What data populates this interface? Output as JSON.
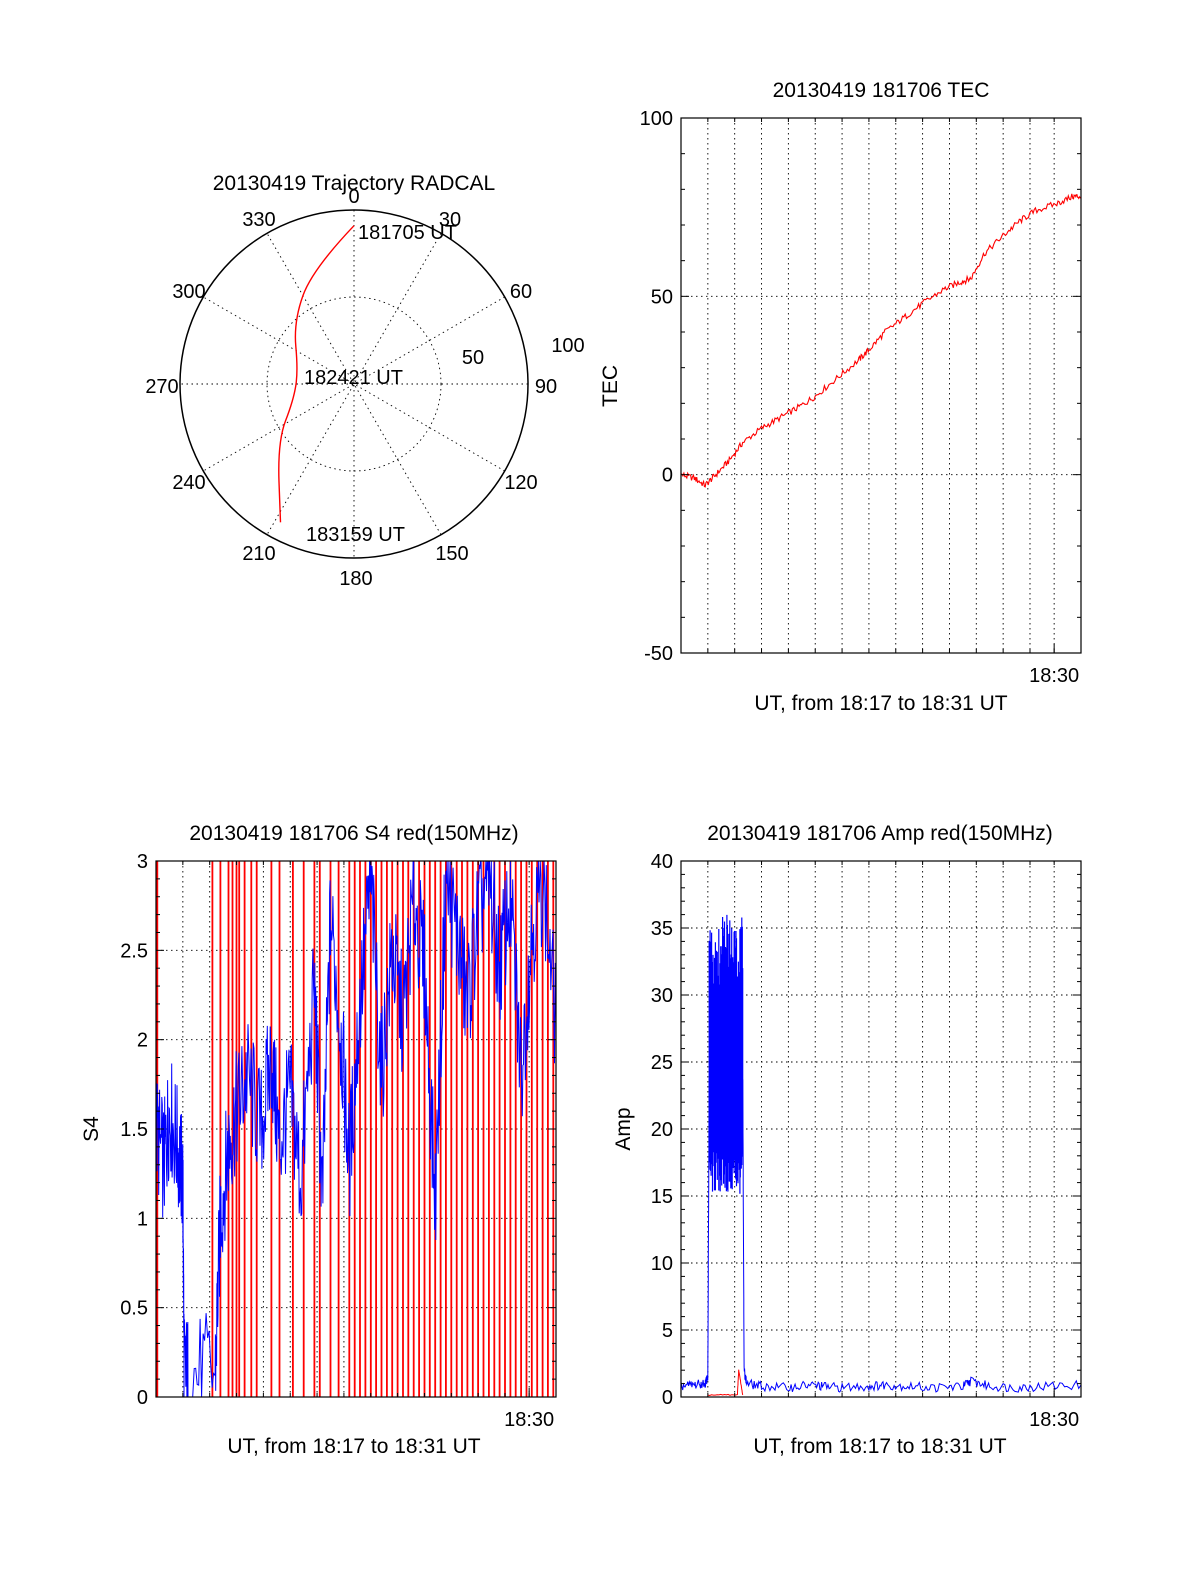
{
  "chart_data": [
    {
      "type": "polar",
      "title": "20130419 Trajectory RADCAL",
      "angle_labels": [
        "0",
        "30",
        "60",
        "90",
        "120",
        "150",
        "180",
        "210",
        "240",
        "270",
        "300",
        "330"
      ],
      "radial_labels": [
        "50",
        "100"
      ],
      "rmax": 100,
      "grid": true,
      "series": [
        {
          "color": "#ff0000",
          "points": [
            {
              "az": 0,
              "r": 91
            },
            {
              "az": 340,
              "r": 70
            },
            {
              "az": 316,
              "r": 50
            },
            {
              "az": 283,
              "r": 33
            },
            {
              "az": 255,
              "r": 36
            },
            {
              "az": 233,
              "r": 55
            },
            {
              "az": 208,
              "r": 90
            }
          ]
        }
      ],
      "annotations": [
        {
          "text": "181705 UT",
          "az": 0,
          "r": 91
        },
        {
          "text": "182421 UT",
          "az": 0,
          "r": 0
        },
        {
          "text": "183159 UT",
          "az": 208,
          "r": 90
        }
      ]
    },
    {
      "type": "line",
      "title": "20130419 181706 TEC",
      "xlabel": "UT, from 18:17 to 18:31 UT",
      "ylabel": "TEC",
      "xlim": [
        0,
        14.9
      ],
      "ylim": [
        -50,
        100
      ],
      "yticks": [
        -50,
        0,
        50,
        100
      ],
      "xtick_labels": [
        {
          "x": 13.9,
          "label": "18:30"
        }
      ],
      "xgrid": [
        1,
        2,
        3,
        4,
        5,
        6,
        7,
        8,
        9,
        10,
        11,
        12,
        13,
        13.9
      ],
      "ygrid": [
        0,
        50
      ],
      "series": [
        {
          "color": "#ff0000",
          "x": [
            0,
            0.5,
            0.9,
            1.3,
            1.8,
            2.3,
            3,
            3.7,
            4.4,
            5,
            5.8,
            6.6,
            7,
            7.6,
            8.3,
            9,
            9.8,
            10.4,
            10.8,
            11.3,
            12,
            12.6,
            13.2,
            14,
            14.6,
            14.9
          ],
          "y": [
            0,
            -1,
            -3,
            0,
            4,
            9,
            13,
            16,
            19,
            22,
            27,
            32,
            35,
            40,
            44,
            48,
            52,
            54,
            55,
            62,
            67,
            71,
            74,
            76,
            78,
            78
          ]
        }
      ]
    },
    {
      "type": "line",
      "title": "20130419 181706 S4 red(150MHz)",
      "xlabel": "UT, from 18:17 to 18:31 UT",
      "ylabel": "S4",
      "xlim": [
        0,
        14.9
      ],
      "ylim": [
        0,
        3
      ],
      "yticks": [
        0,
        0.5,
        1,
        1.5,
        2,
        2.5,
        3
      ],
      "ytick_labels": [
        "0",
        "0.5",
        "1",
        "1.5",
        "2",
        "2.5",
        "3"
      ],
      "xtick_labels": [
        {
          "x": 13.9,
          "label": "18:30"
        }
      ],
      "xgrid": [
        1,
        2,
        3,
        4,
        5,
        6,
        7,
        8,
        9,
        10,
        11,
        12,
        13,
        13.9
      ],
      "ygrid": [
        0.5,
        1,
        1.5,
        2,
        2.5
      ],
      "series": [
        {
          "color": "#ff0000",
          "style": "spikes",
          "x": [
            0.05,
            2.1,
            2.4,
            2.7,
            2.85,
            3.0,
            3.1,
            3.3,
            3.55,
            3.75,
            4.3,
            4.6,
            5.1,
            5.5,
            5.9,
            6.1,
            6.5,
            6.8,
            7.2,
            7.4,
            7.6,
            7.8,
            8.0,
            8.2,
            8.4,
            8.6,
            8.8,
            9.0,
            9.2,
            9.4,
            9.6,
            9.8,
            10.0,
            10.2,
            10.4,
            10.6,
            10.8,
            11.0,
            11.2,
            11.4,
            11.6,
            11.8,
            12.0,
            12.2,
            12.4,
            12.6,
            12.8,
            13.0,
            13.2,
            13.4,
            13.6,
            13.8,
            14.0,
            14.2,
            14.4,
            14.6,
            14.8
          ]
        },
        {
          "color": "#0000ff",
          "x": [
            0,
            0.3,
            0.5,
            0.8,
            1.0,
            1.05,
            1.2,
            2.2,
            2.4,
            2.7,
            3.0,
            3.4,
            3.9,
            4.3,
            4.6,
            5.0,
            5.4,
            5.9,
            6.2,
            6.5,
            6.9,
            7.2,
            7.6,
            8.0,
            8.4,
            8.8,
            9.2,
            9.6,
            10.0,
            10.4,
            10.8,
            11.2,
            11.6,
            12.0,
            12.4,
            12.8,
            13.2,
            13.6,
            14.0,
            14.4,
            14.9
          ],
          "y": [
            1.5,
            1.3,
            1.6,
            1.4,
            1.2,
            0.13,
            0.13,
            0.13,
            1.0,
            1.4,
            1.6,
            1.8,
            1.5,
            1.9,
            1.4,
            1.7,
            1.2,
            2.3,
            1.1,
            2.7,
            2.0,
            1.3,
            2.2,
            2.9,
            1.8,
            2.5,
            2.1,
            2.8,
            2.4,
            1.1,
            2.9,
            2.6,
            2.2,
            2.7,
            2.9,
            2.4,
            2.8,
            1.8,
            2.6,
            2.9,
            2.1
          ]
        }
      ]
    },
    {
      "type": "line",
      "title": "20130419 181706 Amp red(150MHz)",
      "xlabel": "UT, from 18:17 to 18:31 UT",
      "ylabel": "Amp",
      "xlim": [
        0,
        14.9
      ],
      "ylim": [
        0,
        40
      ],
      "yticks": [
        0,
        5,
        10,
        15,
        20,
        25,
        30,
        35,
        40
      ],
      "xtick_labels": [
        {
          "x": 13.9,
          "label": "18:30"
        }
      ],
      "xgrid": [
        1,
        2,
        3,
        4,
        5,
        6,
        7,
        8,
        9,
        10,
        11,
        12,
        13,
        13.9
      ],
      "ygrid": [
        5,
        10,
        15,
        20,
        25,
        30,
        35
      ],
      "series": [
        {
          "color": "#0000ff",
          "x": [
            0,
            0.5,
            0.9,
            1.0,
            1.05,
            2.3,
            2.35,
            2.45,
            3,
            4,
            4.8,
            5.3,
            6,
            7,
            7.6,
            8.5,
            9.5,
            10.5,
            10.8,
            11.5,
            12.5,
            13.5,
            14.9
          ],
          "y": [
            0.8,
            0.9,
            1.0,
            1.5,
            24,
            24,
            2.0,
            1.0,
            0.8,
            0.7,
            0.9,
            0.8,
            0.7,
            0.8,
            0.9,
            0.8,
            0.7,
            0.8,
            1.2,
            0.8,
            0.7,
            0.8,
            0.9
          ],
          "band": {
            "x0": 1.05,
            "x1": 2.3,
            "ymin": 15,
            "ymax": 36
          }
        },
        {
          "color": "#ff0000",
          "x": [
            1.0,
            2.1,
            2.15,
            2.3
          ],
          "y": [
            0.15,
            0.15,
            2.0,
            0.15
          ]
        }
      ]
    }
  ]
}
